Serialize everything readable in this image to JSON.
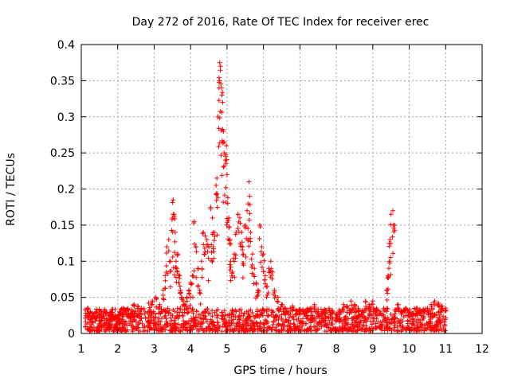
{
  "chart_data": {
    "type": "scatter",
    "title": "Day 272 of 2016, Rate Of TEC Index for receiver erec",
    "xlabel": "GPS time / hours",
    "ylabel": "ROTI / TECUs",
    "xlim": [
      1,
      12
    ],
    "ylim": [
      0,
      0.4
    ],
    "xticks": [
      1,
      2,
      3,
      4,
      5,
      6,
      7,
      8,
      9,
      10,
      11,
      12
    ],
    "yticks": [
      0,
      0.05,
      0.1,
      0.15,
      0.2,
      0.25,
      0.3,
      0.35,
      0.4
    ],
    "ytick_labels": [
      "0",
      "0.05",
      "0.1",
      "0.15",
      "0.2",
      "0.25",
      "0.3",
      "0.35",
      "0.4"
    ],
    "grid": true,
    "marker": "plus",
    "color": "#ff0000",
    "series": [
      {
        "name": "ROTI",
        "x": [
          1.12,
          1.18,
          1.25,
          1.32,
          1.4,
          1.48,
          1.55,
          1.63,
          1.7,
          1.78,
          1.86,
          1.95,
          2.05,
          2.15,
          2.25,
          2.35,
          2.45,
          2.55,
          2.65,
          2.75,
          2.85,
          2.95,
          3.05,
          3.15,
          3.25,
          3.3,
          3.35,
          3.4,
          3.45,
          3.5,
          3.52,
          3.55,
          3.58,
          3.6,
          3.62,
          3.65,
          3.7,
          3.72,
          3.75,
          3.8,
          3.85,
          3.9,
          3.95,
          4.0,
          4.05,
          4.1,
          4.15,
          4.2,
          4.25,
          4.3,
          4.35,
          4.4,
          4.45,
          4.5,
          4.55,
          4.6,
          4.62,
          4.65,
          4.7,
          4.72,
          4.75,
          4.78,
          4.8,
          4.82,
          4.85,
          4.86,
          4.88,
          4.9,
          4.92,
          4.95,
          4.98,
          5.0,
          5.02,
          5.05,
          5.08,
          5.1,
          5.15,
          5.2,
          5.25,
          5.3,
          5.35,
          5.4,
          5.42,
          5.45,
          5.5,
          5.55,
          5.6,
          5.62,
          5.65,
          5.7,
          5.75,
          5.8,
          5.85,
          5.9,
          5.95,
          6.0,
          6.05,
          6.1,
          6.15,
          6.2,
          6.25,
          6.3,
          6.4,
          6.5,
          6.6,
          6.7,
          6.8,
          6.9,
          7.0,
          7.1,
          7.2,
          7.3,
          7.4,
          7.5,
          7.6,
          7.7,
          7.8,
          7.9,
          8.0,
          8.1,
          8.2,
          8.3,
          8.4,
          8.5,
          8.6,
          8.7,
          8.8,
          8.9,
          9.0,
          9.1,
          9.2,
          9.3,
          9.38,
          9.42,
          9.45,
          9.47,
          9.5,
          9.55,
          9.6,
          9.7,
          9.8,
          9.9,
          10.0,
          10.1,
          10.2,
          10.3,
          10.4,
          10.5,
          10.6,
          10.7,
          10.8,
          10.9,
          11.0
        ],
        "y": [
          0.028,
          0.035,
          0.03,
          0.025,
          0.022,
          0.03,
          0.027,
          0.024,
          0.02,
          0.026,
          0.029,
          0.023,
          0.03,
          0.035,
          0.032,
          0.028,
          0.04,
          0.038,
          0.035,
          0.03,
          0.042,
          0.045,
          0.05,
          0.04,
          0.06,
          0.08,
          0.12,
          0.13,
          0.1,
          0.16,
          0.185,
          0.165,
          0.14,
          0.1,
          0.09,
          0.11,
          0.08,
          0.06,
          0.05,
          0.045,
          0.04,
          0.05,
          0.06,
          0.07,
          0.08,
          0.155,
          0.12,
          0.09,
          0.06,
          0.1,
          0.14,
          0.135,
          0.13,
          0.12,
          0.175,
          0.16,
          0.12,
          0.14,
          0.205,
          0.215,
          0.3,
          0.34,
          0.375,
          0.37,
          0.34,
          0.33,
          0.32,
          0.28,
          0.25,
          0.24,
          0.26,
          0.22,
          0.18,
          0.16,
          0.13,
          0.1,
          0.085,
          0.11,
          0.14,
          0.165,
          0.16,
          0.14,
          0.12,
          0.11,
          0.15,
          0.17,
          0.21,
          0.19,
          0.14,
          0.11,
          0.09,
          0.07,
          0.06,
          0.15,
          0.12,
          0.11,
          0.08,
          0.065,
          0.09,
          0.1,
          0.085,
          0.06,
          0.05,
          0.04,
          0.035,
          0.03,
          0.038,
          0.032,
          0.028,
          0.03,
          0.025,
          0.035,
          0.04,
          0.03,
          0.028,
          0.032,
          0.035,
          0.03,
          0.027,
          0.03,
          0.04,
          0.038,
          0.045,
          0.04,
          0.035,
          0.03,
          0.045,
          0.04,
          0.045,
          0.035,
          0.03,
          0.035,
          0.06,
          0.08,
          0.1,
          0.13,
          0.165,
          0.17,
          0.15,
          0.04,
          0.03,
          0.035,
          0.03,
          0.028,
          0.035,
          0.03,
          0.032,
          0.035,
          0.04,
          0.045,
          0.042,
          0.038,
          0.035
        ]
      }
    ],
    "noise_band": {
      "x_start": 1.1,
      "x_end": 11.0,
      "y_min": 0.003,
      "y_max": 0.035
    }
  }
}
